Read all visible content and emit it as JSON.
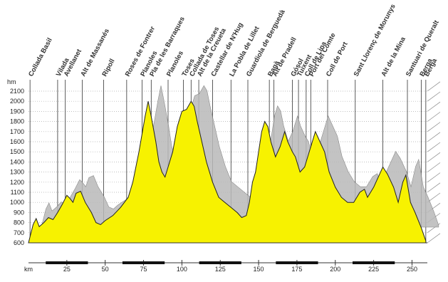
{
  "chart_data": {
    "type": "area",
    "x_label": "km",
    "y_label": "hm",
    "xlim": [
      0,
      260
    ],
    "ylim": [
      600,
      2100
    ],
    "xticks": [
      25,
      50,
      75,
      100,
      125,
      150,
      175,
      200,
      225,
      250
    ],
    "yticks": [
      600,
      700,
      800,
      900,
      1000,
      1100,
      1200,
      1300,
      1400,
      1500,
      1600,
      1700,
      1800,
      1900,
      2000,
      2100
    ],
    "grid": true,
    "color": "#f7f200",
    "shadow_color": "#b9b9b9",
    "places": [
      {
        "name": "Collada Basil",
        "km": 1
      },
      {
        "name": "Vilada",
        "km": 19
      },
      {
        "name": "Avellanet",
        "km": 24
      },
      {
        "name": "Alt de Massanés",
        "km": 35
      },
      {
        "name": "Ripoll",
        "km": 49
      },
      {
        "name": "Roses de Fontrer",
        "km": 64
      },
      {
        "name": "Planoles",
        "km": 74
      },
      {
        "name": "Pla de les Barraques",
        "km": 80
      },
      {
        "name": "Planoles",
        "km": 91
      },
      {
        "name": "Toses",
        "km": 101
      },
      {
        "name": "Collada de Toses",
        "km": 106
      },
      {
        "name": "Alt de la Creueta",
        "km": 111
      },
      {
        "name": "Castellar de N'Hug",
        "km": 120
      },
      {
        "name": "La Pobla de Lillet",
        "km": 132
      },
      {
        "name": "Guardiola de Berguedà",
        "km": 143
      },
      {
        "name": "Bagà",
        "km": 157
      },
      {
        "name": "Alt de Pradell",
        "km": 160
      },
      {
        "name": "Gósol",
        "km": 172
      },
      {
        "name": "Tuixent",
        "km": 176
      },
      {
        "name": "Coll de Lina",
        "km": 181
      },
      {
        "name": "Port del Comte",
        "km": 184
      },
      {
        "name": "Coll de Port",
        "km": 195
      },
      {
        "name": "Sant Llorenç de Morunys",
        "km": 213
      },
      {
        "name": "Alt de la Mina",
        "km": 231
      },
      {
        "name": "Santuari de Queralt",
        "km": 247
      },
      {
        "name": "Berga",
        "km": 256
      },
      {
        "name": "Berga",
        "km": 259
      }
    ],
    "x": [
      0,
      3,
      5,
      7,
      10,
      13,
      16,
      19,
      22,
      25,
      27,
      29,
      31,
      34,
      37,
      41,
      44,
      47,
      50,
      55,
      60,
      65,
      68,
      72,
      76,
      78,
      80,
      83,
      85,
      87,
      89,
      91,
      94,
      97,
      100,
      103,
      106,
      108,
      110,
      113,
      116,
      120,
      124,
      128,
      132,
      136,
      139,
      142,
      144,
      146,
      148,
      150,
      152,
      154,
      156,
      158,
      161,
      164,
      167,
      169,
      172,
      174,
      177,
      180,
      184,
      187,
      190,
      193,
      196,
      200,
      204,
      208,
      212,
      216,
      219,
      221,
      223,
      225,
      228,
      231,
      234,
      238,
      241,
      244,
      246,
      249,
      252,
      256,
      259
    ],
    "values": [
      600,
      780,
      840,
      760,
      800,
      850,
      830,
      900,
      980,
      1070,
      1040,
      1000,
      1090,
      1110,
      1000,
      900,
      800,
      780,
      820,
      870,
      950,
      1050,
      1200,
      1500,
      1850,
      2000,
      1850,
      1600,
      1400,
      1300,
      1250,
      1350,
      1500,
      1750,
      1900,
      1920,
      2000,
      1950,
      1800,
      1600,
      1400,
      1200,
      1050,
      1000,
      950,
      900,
      850,
      870,
      1000,
      1200,
      1300,
      1500,
      1700,
      1800,
      1750,
      1600,
      1450,
      1550,
      1700,
      1600,
      1500,
      1450,
      1300,
      1350,
      1550,
      1700,
      1600,
      1500,
      1300,
      1150,
      1050,
      1000,
      1000,
      1100,
      1130,
      1050,
      1100,
      1150,
      1250,
      1350,
      1280,
      1150,
      1000,
      1200,
      1270,
      1000,
      900,
      750,
      620
    ]
  }
}
